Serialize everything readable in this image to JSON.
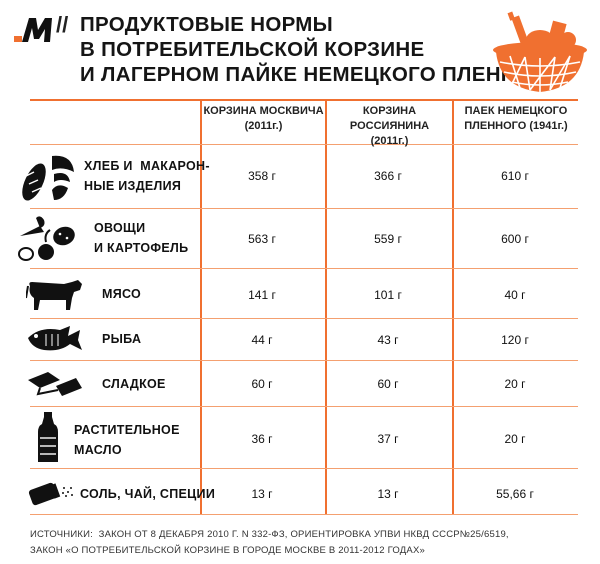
{
  "header": {
    "logo_text": "M",
    "separator": "//",
    "title_lines": [
      "ПРОДУКТОВЫЕ НОРМЫ",
      "В ПОТРЕБИТЕЛЬСКОЙ КОРЗИНЕ",
      "И ЛАГЕРНОМ ПАЙКЕ НЕМЕЦКОГО ПЛЕННОГО"
    ]
  },
  "table": {
    "columns": [
      {
        "line1": "КОРЗИНА МОСКВИЧА",
        "line2": "(2011г.)"
      },
      {
        "line1": "КОРЗИНА РОССИЯНИНА",
        "line2": "(2011г.)"
      },
      {
        "line1": "ПАЕК НЕМЕЦКОГО",
        "line2": "ПЛЕННОГО (1941г.)"
      }
    ],
    "rows": [
      {
        "label1": "ХЛЕБ И  МАКАРОН-",
        "label2": "НЫЕ ИЗДЕЛИЯ",
        "icon": "bread-pasta-icon",
        "values": [
          "358 г",
          "366 г",
          "610 г"
        ]
      },
      {
        "label1": "ОВОЩИ",
        "label2": "И КАРТОФЕЛЬ",
        "icon": "vegetables-icon",
        "values": [
          "563 г",
          "559 г",
          "600 г"
        ]
      },
      {
        "label1": "МЯСО",
        "label2": "",
        "icon": "cow-icon",
        "values": [
          "141 г",
          "101 г",
          "40 г"
        ]
      },
      {
        "label1": "РЫБА",
        "label2": "",
        "icon": "fish-icon",
        "values": [
          "44 г",
          "43 г",
          "120 г"
        ]
      },
      {
        "label1": "СЛАДКОЕ",
        "label2": "",
        "icon": "candy-icon",
        "values": [
          "60 г",
          "60 г",
          "20 г"
        ]
      },
      {
        "label1": "РАСТИТЕЛЬНОЕ",
        "label2": "МАСЛО",
        "icon": "oil-bottle-icon",
        "values": [
          "36 г",
          "37 г",
          "20 г"
        ]
      },
      {
        "label1": "СОЛЬ, ЧАЙ, СПЕЦИИ",
        "label2": "",
        "icon": "salt-shaker-icon",
        "values": [
          "13 г",
          "13 г",
          "55,66 г"
        ]
      }
    ]
  },
  "sources": {
    "line1": "ИСТОЧНИКИ:  ЗАКОН ОТ 8 ДЕКАБРЯ 2010 Г. N 332-ФЗ, ОРИЕНТИРОВКА УПВИ НКВД СССР№25/6519,",
    "line2": "ЗАКОН «О ПОТРЕБИТЕЛЬСКОЙ КОРЗИНЕ В ГОРОДЕ МОСКВЕ В 2011-2012 ГОДАХ»"
  },
  "colors": {
    "accent": "#f07030",
    "text": "#111111"
  }
}
